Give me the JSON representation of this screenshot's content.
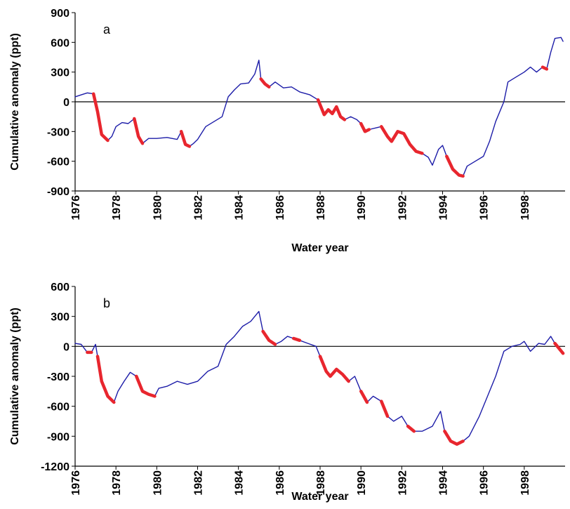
{
  "chart_data": [
    {
      "type": "line",
      "annotation": "a",
      "y_label": "Cumulative anomaly (ppt)",
      "x_label": "Water year",
      "xlim": [
        1976,
        2000
      ],
      "xticks": [
        1976,
        1978,
        1980,
        1982,
        1984,
        1986,
        1988,
        1990,
        1992,
        1994,
        1996,
        1998
      ],
      "ylim": [
        -900,
        900
      ],
      "yticks": [
        -900,
        -600,
        -300,
        0,
        300,
        600,
        900
      ],
      "x": [
        1976.0,
        1976.3,
        1976.6,
        1976.9,
        1977.1,
        1977.3,
        1977.6,
        1977.8,
        1978.0,
        1978.3,
        1978.6,
        1978.9,
        1979.1,
        1979.3,
        1979.6,
        1980.0,
        1980.5,
        1981.0,
        1981.2,
        1981.4,
        1981.6,
        1981.8,
        1982.0,
        1982.4,
        1982.8,
        1983.2,
        1983.5,
        1983.8,
        1984.1,
        1984.5,
        1984.8,
        1985.0,
        1985.1,
        1985.3,
        1985.5,
        1985.8,
        1986.2,
        1986.6,
        1987.0,
        1987.5,
        1987.9,
        1988.2,
        1988.4,
        1988.6,
        1988.8,
        1989.0,
        1989.2,
        1989.5,
        1989.8,
        1990.0,
        1990.2,
        1990.4,
        1990.8,
        1991.0,
        1991.3,
        1991.5,
        1991.8,
        1992.1,
        1992.4,
        1992.7,
        1993.0,
        1993.3,
        1993.5,
        1993.8,
        1994.0,
        1994.2,
        1994.5,
        1994.8,
        1995.0,
        1995.2,
        1995.6,
        1996.0,
        1996.3,
        1996.6,
        1997.0,
        1997.2,
        1997.6,
        1998.0,
        1998.3,
        1998.6,
        1998.9,
        1999.1,
        1999.3,
        1999.5,
        1999.8,
        1999.9
      ],
      "series": [
        {
          "color": "#1c1ca8",
          "values": [
            50,
            70,
            90,
            80,
            -100,
            -330,
            -390,
            -350,
            -250,
            -210,
            -220,
            -170,
            -350,
            -420,
            -370,
            -370,
            -360,
            -380,
            -300,
            -430,
            -450,
            -420,
            -380,
            -250,
            -200,
            -150,
            50,
            120,
            180,
            190,
            280,
            420,
            230,
            180,
            150,
            200,
            140,
            150,
            100,
            70,
            20,
            -130,
            -80,
            -120,
            -50,
            -150,
            -180,
            -150,
            -180,
            -220,
            -300,
            -280,
            -260,
            -250,
            -350,
            -400,
            -300,
            -320,
            -430,
            -500,
            -520,
            -560,
            -640,
            -480,
            -440,
            -550,
            -680,
            -740,
            -750,
            -650,
            -600,
            -550,
            -400,
            -200,
            0,
            200,
            250,
            300,
            350,
            300,
            350,
            330,
            500,
            640,
            650,
            610
          ]
        },
        {
          "color": "#e8262e",
          "values": [
            null,
            null,
            null,
            80,
            -100,
            -330,
            -390,
            null,
            null,
            null,
            null,
            -170,
            -350,
            -420,
            null,
            null,
            null,
            null,
            -300,
            -430,
            -450,
            null,
            null,
            null,
            null,
            null,
            null,
            null,
            null,
            null,
            null,
            null,
            230,
            180,
            150,
            null,
            null,
            null,
            null,
            null,
            20,
            -130,
            -80,
            -120,
            -50,
            -150,
            -180,
            null,
            null,
            -220,
            -300,
            -280,
            null,
            -250,
            -350,
            -400,
            -300,
            -320,
            -430,
            -500,
            -520,
            null,
            null,
            null,
            null,
            -550,
            -680,
            -740,
            -750,
            null,
            null,
            null,
            null,
            null,
            null,
            null,
            null,
            null,
            null,
            null,
            350,
            330,
            null,
            null,
            null,
            null
          ]
        }
      ]
    },
    {
      "type": "line",
      "annotation": "b",
      "y_label": "Cumulative anomaly (ppt)",
      "x_label": "Water year",
      "xlim": [
        1976,
        2000
      ],
      "xticks": [
        1976,
        1978,
        1980,
        1982,
        1984,
        1986,
        1988,
        1990,
        1992,
        1994,
        1996,
        1998
      ],
      "ylim": [
        -1200,
        600
      ],
      "yticks": [
        -1200,
        -900,
        -600,
        -300,
        0,
        300,
        600
      ],
      "x": [
        1976.0,
        1976.3,
        1976.6,
        1976.8,
        1977.0,
        1977.1,
        1977.3,
        1977.6,
        1977.9,
        1978.1,
        1978.4,
        1978.7,
        1979.0,
        1979.3,
        1979.6,
        1979.9,
        1980.1,
        1980.5,
        1981.0,
        1981.5,
        1982.0,
        1982.5,
        1983.0,
        1983.4,
        1983.8,
        1984.2,
        1984.6,
        1985.0,
        1985.2,
        1985.5,
        1985.8,
        1986.1,
        1986.4,
        1986.7,
        1987.0,
        1987.4,
        1987.8,
        1988.0,
        1988.3,
        1988.5,
        1988.8,
        1989.1,
        1989.4,
        1989.7,
        1990.0,
        1990.3,
        1990.6,
        1991.0,
        1991.3,
        1991.6,
        1992.0,
        1992.3,
        1992.6,
        1993.0,
        1993.5,
        1993.9,
        1994.1,
        1994.4,
        1994.7,
        1995.0,
        1995.3,
        1995.8,
        1996.2,
        1996.6,
        1997.0,
        1997.4,
        1997.8,
        1998.0,
        1998.3,
        1998.7,
        1999.0,
        1999.3,
        1999.5,
        1999.7,
        1999.9
      ],
      "series": [
        {
          "color": "#1c1ca8",
          "values": [
            30,
            20,
            -60,
            -60,
            20,
            -100,
            -350,
            -500,
            -560,
            -450,
            -350,
            -260,
            -300,
            -450,
            -480,
            -500,
            -420,
            -400,
            -350,
            -380,
            -350,
            -250,
            -200,
            20,
            100,
            200,
            250,
            350,
            150,
            60,
            20,
            50,
            100,
            80,
            60,
            30,
            0,
            -100,
            -250,
            -300,
            -230,
            -280,
            -350,
            -300,
            -450,
            -560,
            -500,
            -550,
            -700,
            -750,
            -700,
            -800,
            -850,
            -850,
            -800,
            -650,
            -850,
            -950,
            -980,
            -950,
            -900,
            -700,
            -500,
            -300,
            -50,
            0,
            20,
            50,
            -50,
            30,
            20,
            100,
            30,
            -20,
            -70
          ]
        },
        {
          "color": "#e8262e",
          "values": [
            null,
            null,
            -60,
            -60,
            null,
            -100,
            -350,
            -500,
            -560,
            null,
            null,
            null,
            -300,
            -450,
            -480,
            -500,
            null,
            null,
            null,
            null,
            null,
            null,
            null,
            null,
            null,
            null,
            null,
            null,
            150,
            60,
            20,
            null,
            null,
            80,
            60,
            null,
            null,
            -100,
            -250,
            -300,
            -230,
            -280,
            -350,
            null,
            -450,
            -560,
            null,
            -550,
            -700,
            null,
            null,
            -800,
            -850,
            null,
            null,
            null,
            -850,
            -950,
            -980,
            -950,
            null,
            null,
            null,
            null,
            null,
            null,
            null,
            null,
            null,
            null,
            null,
            null,
            30,
            -20,
            -70
          ]
        }
      ]
    }
  ]
}
